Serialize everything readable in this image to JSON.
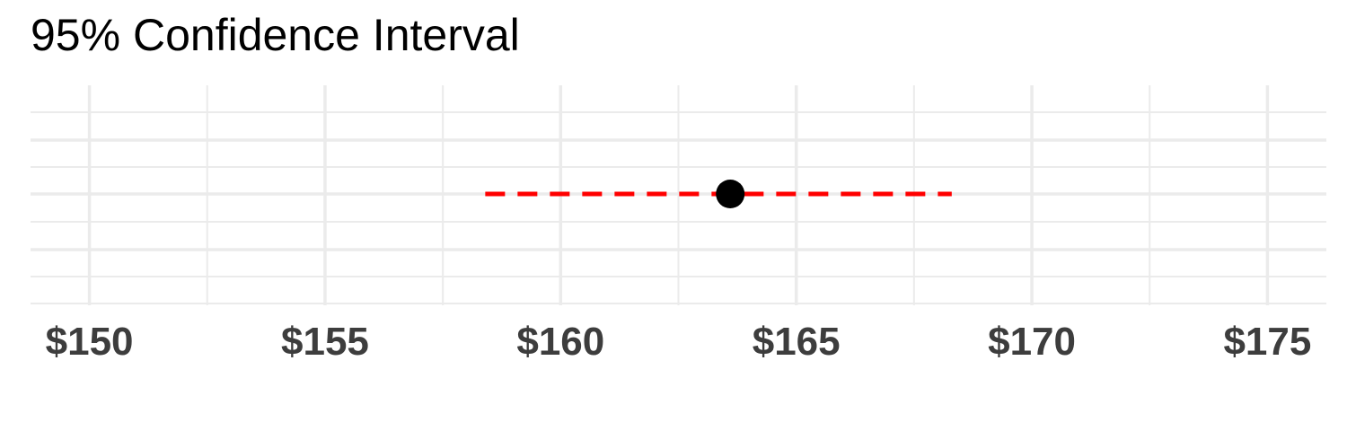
{
  "chart_data": {
    "type": "scatter",
    "title": "95% Confidence Interval",
    "xlabel": "",
    "ylabel": "",
    "xlim": [
      148.75,
      176.25
    ],
    "x_ticks": [
      150,
      155,
      160,
      165,
      170,
      175
    ],
    "x_tick_labels": [
      "$150",
      "$155",
      "$160",
      "$165",
      "$170",
      "$175"
    ],
    "grid": true,
    "legend": "none",
    "point": {
      "x": 163.6,
      "color": "#000000"
    },
    "interval": {
      "lower": 158.4,
      "upper": 168.3,
      "color": "#ff0000",
      "style": "dashed"
    }
  }
}
